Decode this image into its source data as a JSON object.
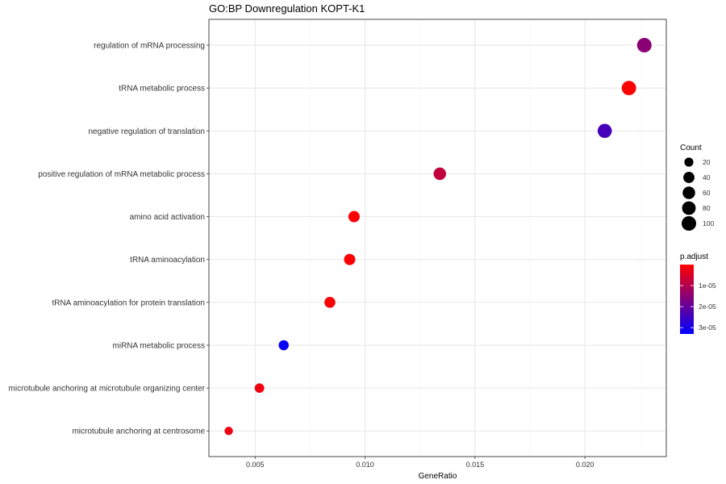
{
  "chart_data": {
    "type": "scatter",
    "title": "GO:BP Downregulation KOPT-K1",
    "xlabel": "GeneRatio",
    "ylabel": "",
    "xlim": [
      0.0029,
      0.0237
    ],
    "xticks": [
      0.005,
      0.01,
      0.015,
      0.02
    ],
    "xtick_labels": [
      "0.005",
      "0.010",
      "0.015",
      "0.020"
    ],
    "grid": true,
    "legend_position": "right",
    "categories": [
      "regulation of mRNA processing",
      "tRNA metabolic process",
      "negative regulation of translation",
      "positive regulation of mRNA metabolic process",
      "amino acid activation",
      "tRNA aminoacylation",
      "tRNA aminoacylation for protein translation",
      "miRNA metabolic process",
      "microtubule anchoring at microtubule organizing center",
      "microtubule anchoring at centrosome"
    ],
    "points": [
      {
        "term": "regulation of mRNA processing",
        "gene_ratio": 0.0227,
        "count": 100,
        "p_adjust": 1.5e-05
      },
      {
        "term": "tRNA metabolic process",
        "gene_ratio": 0.022,
        "count": 97,
        "p_adjust": 3e-07
      },
      {
        "term": "negative regulation of translation",
        "gene_ratio": 0.0209,
        "count": 92,
        "p_adjust": 2.4e-05
      },
      {
        "term": "positive regulation of mRNA metabolic process",
        "gene_ratio": 0.0134,
        "count": 59,
        "p_adjust": 8e-06
      },
      {
        "term": "amino acid activation",
        "gene_ratio": 0.0095,
        "count": 42,
        "p_adjust": 5e-07
      },
      {
        "term": "tRNA aminoacylation",
        "gene_ratio": 0.0093,
        "count": 41,
        "p_adjust": 5e-07
      },
      {
        "term": "tRNA aminoacylation for protein translation",
        "gene_ratio": 0.0084,
        "count": 37,
        "p_adjust": 5e-07
      },
      {
        "term": "miRNA metabolic process",
        "gene_ratio": 0.0063,
        "count": 28,
        "p_adjust": 3.2e-05
      },
      {
        "term": "microtubule anchoring at microtubule organizing center",
        "gene_ratio": 0.0052,
        "count": 23,
        "p_adjust": 2e-06
      },
      {
        "term": "microtubule anchoring at centrosome",
        "gene_ratio": 0.0038,
        "count": 17,
        "p_adjust": 2e-06
      }
    ],
    "size_legend": {
      "title": "Count",
      "values": [
        20,
        40,
        60,
        80,
        100
      ],
      "labels": [
        "20",
        "40",
        "60",
        "80",
        "100"
      ]
    },
    "color_legend": {
      "title": "p.adjust",
      "range": [
        0,
        3.3e-05
      ],
      "ticks": [
        1e-05,
        2e-05,
        3e-05
      ],
      "labels": [
        "1e-05",
        "2e-05",
        "3e-05"
      ],
      "low_color": "#ff0000",
      "high_color": "#0000ff"
    }
  }
}
